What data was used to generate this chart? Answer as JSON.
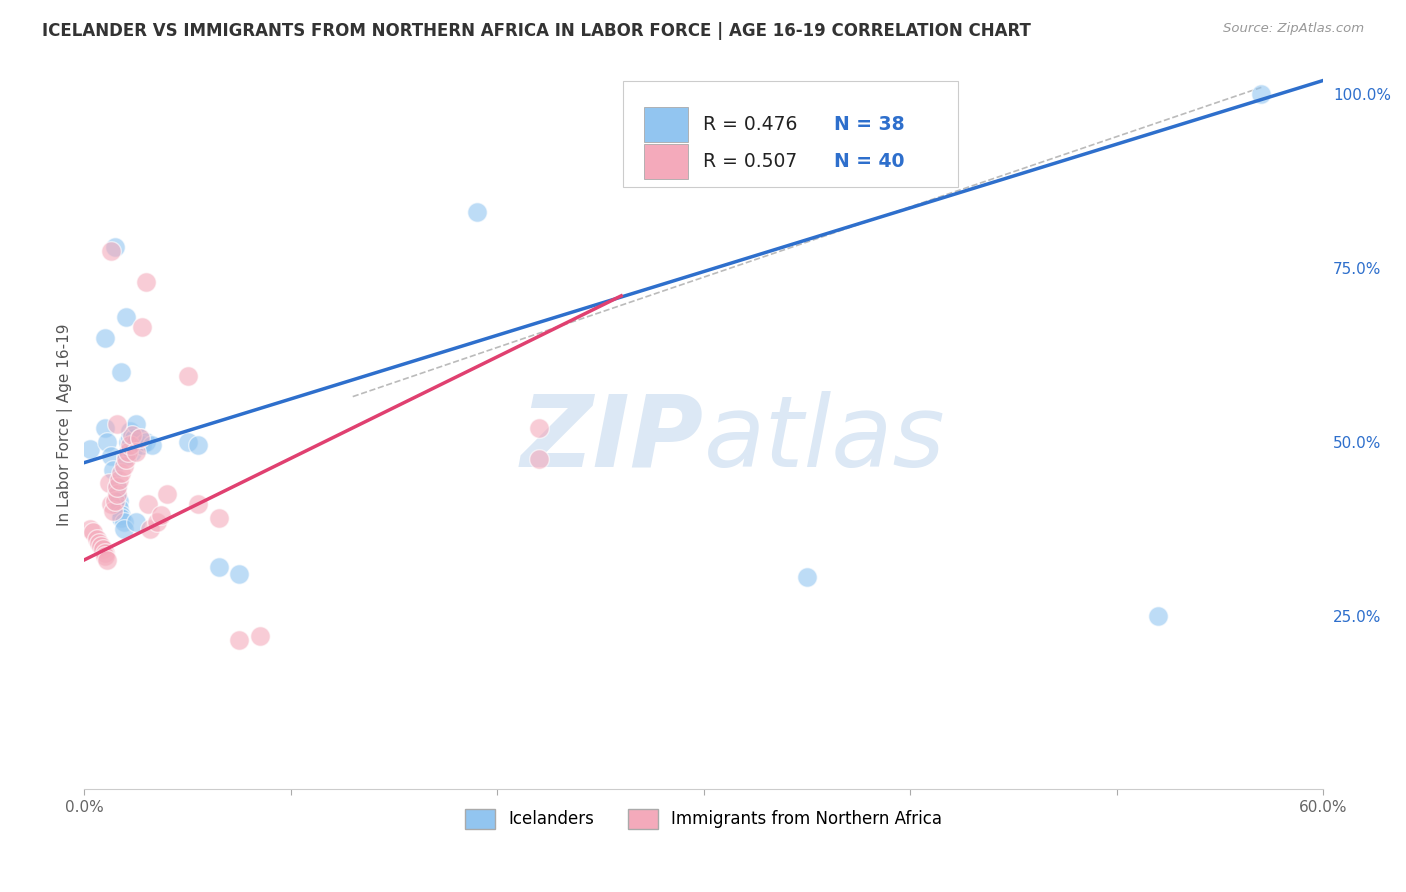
{
  "title": "ICELANDER VS IMMIGRANTS FROM NORTHERN AFRICA IN LABOR FORCE | AGE 16-19 CORRELATION CHART",
  "source": "Source: ZipAtlas.com",
  "ylabel": "In Labor Force | Age 16-19",
  "xmin": 0.0,
  "xmax": 0.6,
  "ymin": 0.0,
  "ymax": 1.05,
  "xticks": [
    0.0,
    0.1,
    0.2,
    0.3,
    0.4,
    0.5,
    0.6
  ],
  "xticklabels": [
    "0.0%",
    "",
    "",
    "",
    "",
    "",
    "60.0%"
  ],
  "yticks_right": [
    0.0,
    0.25,
    0.5,
    0.75,
    1.0
  ],
  "yticklabels_right": [
    "",
    "25.0%",
    "50.0%",
    "75.0%",
    "100.0%"
  ],
  "icelanders_R": 0.476,
  "icelanders_N": 38,
  "immigrants_R": 0.507,
  "immigrants_N": 40,
  "blue_color": "#92C5F0",
  "pink_color": "#F4AABB",
  "blue_line_color": "#2E6FCC",
  "pink_line_color": "#E04070",
  "gray_line_color": "#BBBBBB",
  "background_color": "#FFFFFF",
  "grid_color": "#DDDDE8",
  "watermark_color": "#DCE8F5",
  "icelanders_x": [
    0.003,
    0.01,
    0.011,
    0.013,
    0.014,
    0.016,
    0.016,
    0.017,
    0.017,
    0.018,
    0.018,
    0.019,
    0.019,
    0.02,
    0.021,
    0.022,
    0.022,
    0.023,
    0.024,
    0.025,
    0.025,
    0.027,
    0.028,
    0.03,
    0.033,
    0.05,
    0.055,
    0.065,
    0.075,
    0.01,
    0.015,
    0.018,
    0.02,
    0.025,
    0.19,
    0.35,
    0.52,
    0.57
  ],
  "icelanders_y": [
    0.49,
    0.52,
    0.5,
    0.48,
    0.46,
    0.435,
    0.42,
    0.415,
    0.405,
    0.395,
    0.39,
    0.385,
    0.375,
    0.48,
    0.5,
    0.505,
    0.515,
    0.485,
    0.505,
    0.525,
    0.5,
    0.505,
    0.495,
    0.5,
    0.495,
    0.5,
    0.495,
    0.32,
    0.31,
    0.65,
    0.78,
    0.6,
    0.68,
    0.385,
    0.83,
    0.305,
    0.25,
    1.0
  ],
  "immigrants_x": [
    0.003,
    0.004,
    0.006,
    0.007,
    0.008,
    0.009,
    0.01,
    0.01,
    0.011,
    0.012,
    0.013,
    0.014,
    0.015,
    0.016,
    0.016,
    0.017,
    0.018,
    0.019,
    0.02,
    0.021,
    0.022,
    0.023,
    0.025,
    0.027,
    0.028,
    0.03,
    0.031,
    0.032,
    0.035,
    0.037,
    0.04,
    0.05,
    0.055,
    0.065,
    0.075,
    0.085,
    0.013,
    0.016,
    0.22,
    0.22
  ],
  "immigrants_y": [
    0.375,
    0.37,
    0.36,
    0.355,
    0.35,
    0.345,
    0.34,
    0.335,
    0.33,
    0.44,
    0.41,
    0.4,
    0.415,
    0.425,
    0.435,
    0.445,
    0.455,
    0.465,
    0.475,
    0.485,
    0.495,
    0.51,
    0.485,
    0.505,
    0.665,
    0.73,
    0.41,
    0.375,
    0.385,
    0.395,
    0.425,
    0.595,
    0.41,
    0.39,
    0.215,
    0.22,
    0.775,
    0.525,
    0.475,
    0.52
  ],
  "blue_line_x0": 0.0,
  "blue_line_y0": 0.47,
  "blue_line_x1": 0.6,
  "blue_line_y1": 1.02,
  "pink_line_x0": 0.0,
  "pink_line_y0": 0.33,
  "pink_line_x1": 0.26,
  "pink_line_y1": 0.71,
  "gray_line_x0": 0.13,
  "gray_line_y0": 0.565,
  "gray_line_x1": 0.57,
  "gray_line_y1": 1.01
}
